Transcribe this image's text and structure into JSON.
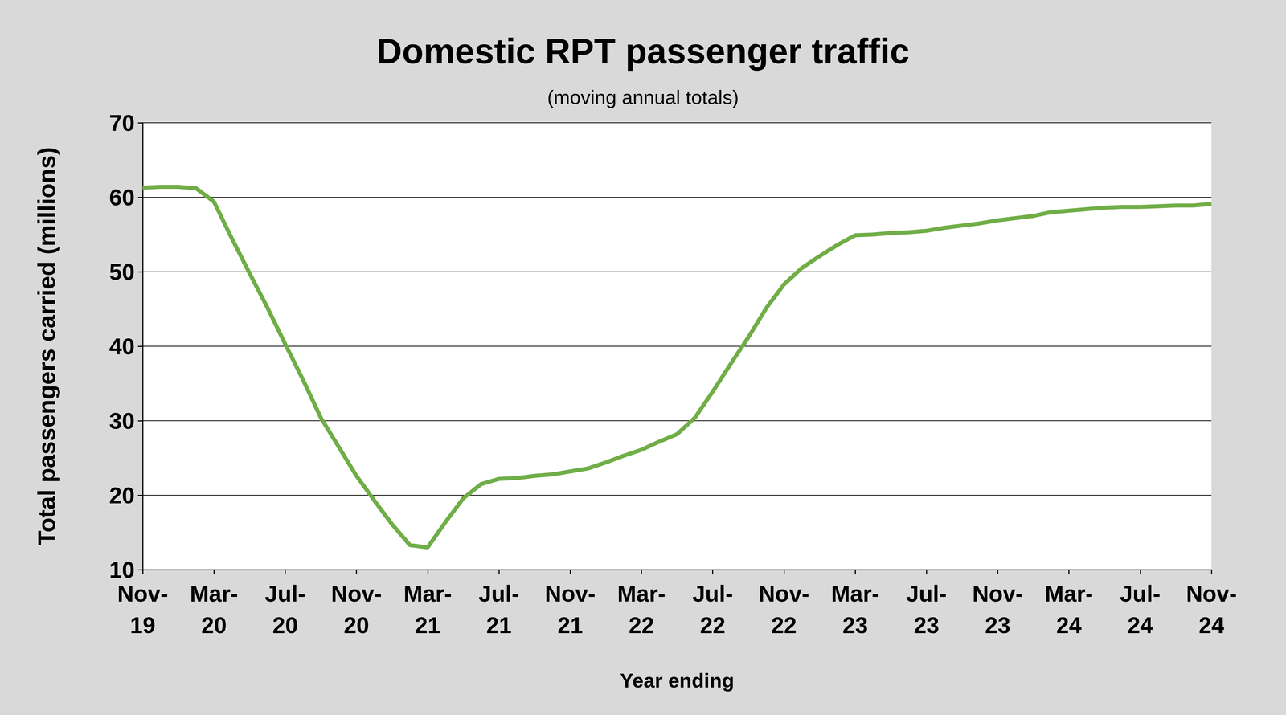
{
  "chart_data": {
    "type": "line",
    "title": "Domestic RPT passenger traffic",
    "subtitle": "(moving annual totals)",
    "x_label": "Year ending",
    "y_label": "Total passengers carried (millions)",
    "categories": [
      "Nov-19",
      null,
      null,
      null,
      "Mar-20",
      null,
      null,
      null,
      "Jul-20",
      null,
      null,
      null,
      "Nov-20",
      null,
      null,
      null,
      "Mar-21",
      null,
      null,
      null,
      "Jul-21",
      null,
      null,
      null,
      "Nov-21",
      null,
      null,
      null,
      "Mar-22",
      null,
      null,
      null,
      "Jul-22",
      null,
      null,
      null,
      "Nov-22",
      null,
      null,
      null,
      "Mar-23",
      null,
      null,
      null,
      "Jul-23",
      null,
      null,
      null,
      "Nov-23",
      null,
      null,
      null,
      "Mar-24",
      null,
      null,
      null,
      "Jul-24",
      null,
      null,
      null,
      "Nov-24"
    ],
    "values": [
      61.3,
      61.4,
      61.4,
      61.2,
      59.4,
      54.5,
      49.8,
      45.2,
      40.3,
      35.5,
      30.4,
      26.5,
      22.6,
      19.3,
      16.1,
      13.3,
      13.0,
      16.4,
      19.6,
      21.5,
      22.2,
      22.3,
      22.6,
      22.8,
      23.2,
      23.6,
      24.4,
      25.3,
      26.1,
      27.2,
      28.2,
      30.4,
      33.9,
      37.6,
      41.2,
      45.1,
      48.3,
      50.5,
      52.1,
      53.6,
      54.9,
      55.0,
      55.2,
      55.3,
      55.5,
      55.9,
      56.2,
      56.5,
      56.9,
      57.2,
      57.5,
      58.0,
      58.2,
      58.4,
      58.6,
      58.7,
      58.7,
      58.8,
      58.9,
      58.9,
      59.1
    ],
    "color": "#70ad47",
    "ylim": [
      10,
      70
    ],
    "yticks": [
      10,
      20,
      30,
      40,
      50,
      60,
      70
    ],
    "grid": true
  }
}
